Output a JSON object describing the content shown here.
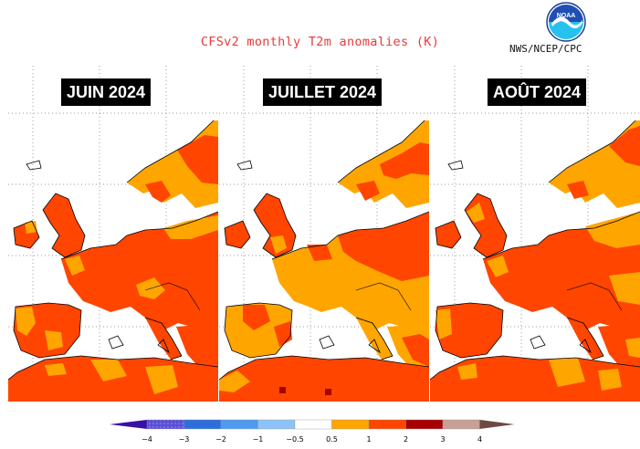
{
  "header": {
    "title": "CFSv2 monthly T2m anomalies (K)",
    "agency": "NWS/NCEP/CPC",
    "logo_icon": "noaa-logo-icon"
  },
  "panels": [
    {
      "label": "JUIN 2024"
    },
    {
      "label": "JUILLET 2024"
    },
    {
      "label": "AOÛT 2024"
    }
  ],
  "legend": {
    "tick_labels": [
      "−4",
      "−3",
      "−2",
      "−1",
      "−0.5",
      "0.5",
      "1",
      "2",
      "3",
      "4"
    ],
    "colors": {
      "below_-4": "#3a0ea8",
      "-4_-3": "#5a4fd8",
      "-3_-2": "#2c6fdc",
      "-2_-1": "#4d9aef",
      "-1_-0.5": "#8cc2f8",
      "-0.5_0.5": "#ffffff",
      "0.5_1": "#ffa500",
      "1_2": "#ff4500",
      "2_3": "#a80000",
      "3_4": "#c8a096",
      "above_4": "#6e4a42"
    }
  },
  "colors": {
    "title": "#e83a3a",
    "anomaly_0_5_to_1": "#ffa500",
    "anomaly_1_to_2": "#ff4500",
    "anomaly_2_to_3": "#a80000",
    "land_no_signal": "#ffffff"
  }
}
